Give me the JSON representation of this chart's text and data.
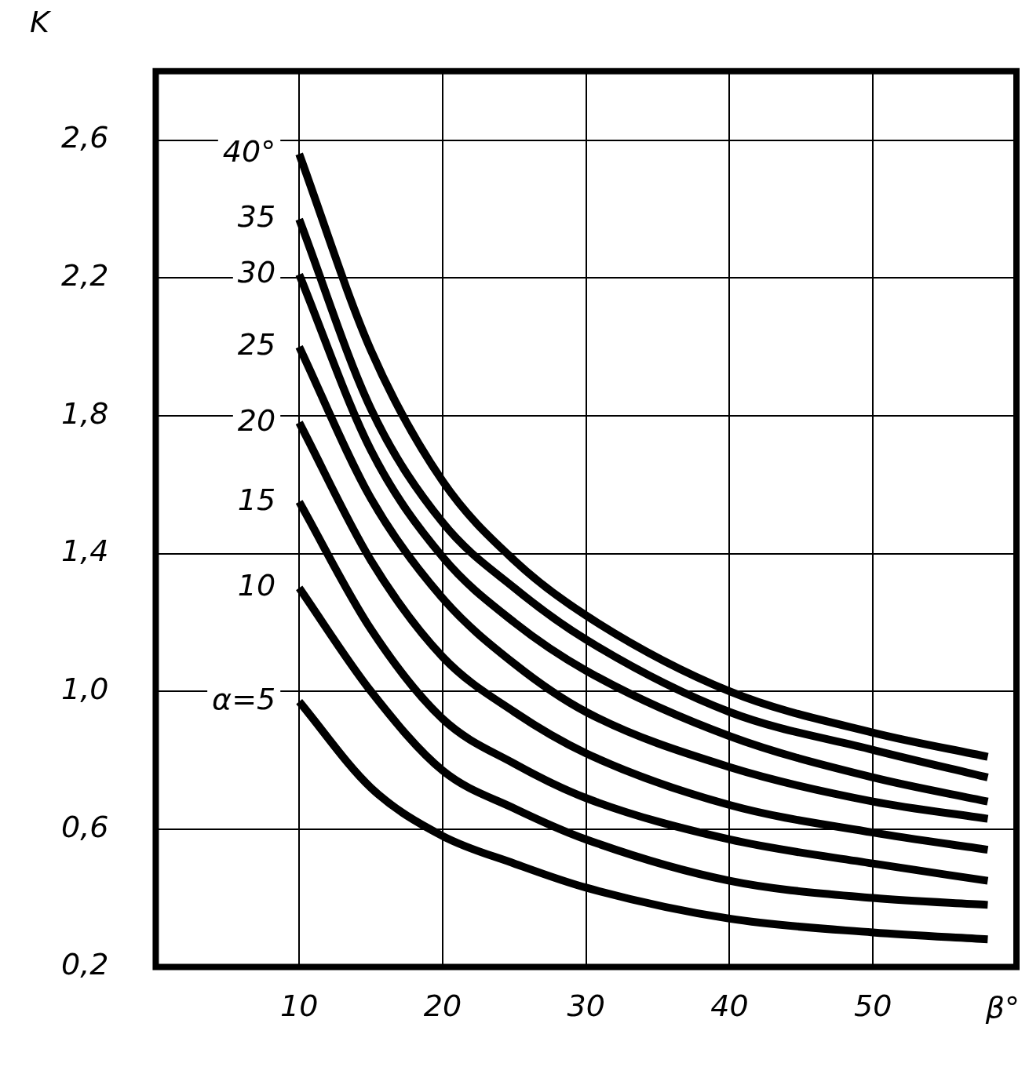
{
  "chart_data": {
    "type": "line",
    "xlabel": "β°",
    "ylabel": "K",
    "x": [
      10,
      15,
      20,
      25,
      30,
      40,
      50,
      58
    ],
    "xlim": [
      0,
      60
    ],
    "xticks": [
      10,
      20,
      30,
      40,
      50
    ],
    "ylim": [
      0.2,
      2.8
    ],
    "yticks": [
      {
        "value": 0.2,
        "label": "0,2"
      },
      {
        "value": 0.6,
        "label": "0,6"
      },
      {
        "value": 1.0,
        "label": "1,0"
      },
      {
        "value": 1.4,
        "label": "1,4"
      },
      {
        "value": 1.8,
        "label": "1,8"
      },
      {
        "value": 2.2,
        "label": "2,2"
      },
      {
        "value": 2.6,
        "label": "2,6"
      }
    ],
    "grid": true,
    "legend": false,
    "marker": "none",
    "line_style": "solid",
    "series": [
      {
        "name": "40°",
        "color": "#000000",
        "values": [
          2.56,
          1.99,
          1.61,
          1.38,
          1.22,
          1.0,
          0.88,
          0.81
        ]
      },
      {
        "name": "35",
        "color": "#000000",
        "values": [
          2.37,
          1.82,
          1.49,
          1.3,
          1.15,
          0.94,
          0.83,
          0.75
        ]
      },
      {
        "name": "30",
        "color": "#000000",
        "values": [
          2.21,
          1.7,
          1.39,
          1.2,
          1.06,
          0.87,
          0.75,
          0.68
        ]
      },
      {
        "name": "25",
        "color": "#000000",
        "values": [
          2.0,
          1.56,
          1.27,
          1.08,
          0.94,
          0.78,
          0.68,
          0.63
        ]
      },
      {
        "name": "20",
        "color": "#000000",
        "values": [
          1.78,
          1.38,
          1.1,
          0.94,
          0.82,
          0.67,
          0.59,
          0.54
        ]
      },
      {
        "name": "15",
        "color": "#000000",
        "values": [
          1.55,
          1.18,
          0.92,
          0.79,
          0.69,
          0.57,
          0.5,
          0.45
        ]
      },
      {
        "name": "10",
        "color": "#000000",
        "values": [
          1.3,
          1.0,
          0.77,
          0.66,
          0.57,
          0.45,
          0.4,
          0.38
        ]
      },
      {
        "name": "α=5",
        "color": "#000000",
        "values": [
          0.97,
          0.72,
          0.58,
          0.5,
          0.43,
          0.34,
          0.3,
          0.28
        ]
      }
    ]
  }
}
